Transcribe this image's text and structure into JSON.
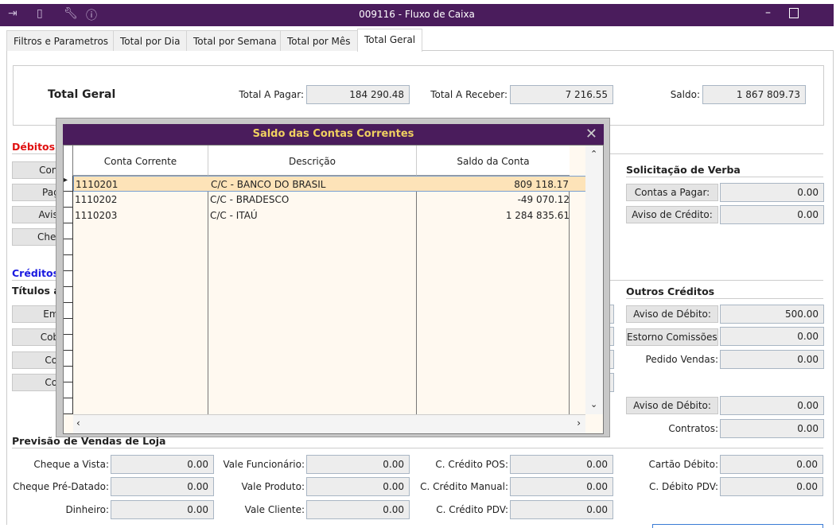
{
  "window": {
    "title": "009116 - Fluxo de Caixa",
    "icons": [
      "indent-icon",
      "traffic-light-icon",
      "wrench-icon",
      "info-icon"
    ]
  },
  "tabs": [
    {
      "label": "Filtros e Parametros"
    },
    {
      "label": "Total por Dia"
    },
    {
      "label": "Total por Semana"
    },
    {
      "label": "Total por Mês"
    },
    {
      "label": "Total Geral",
      "active": true
    }
  ],
  "summary": {
    "title": "Total Geral",
    "pagar_label": "Total A Pagar:",
    "pagar": "184 290.48",
    "receber_label": "Total A Receber:",
    "receber": "7 216.55",
    "saldo_label": "Saldo:",
    "saldo": "1 867 809.73"
  },
  "debitos": {
    "title": "Débitos",
    "buttons": [
      "Contas",
      "Pagar",
      "Aviso d",
      "Cheque"
    ]
  },
  "creditos": {
    "title": "Créditos",
    "subtitle": "Títulos a",
    "buttons": [
      "Em C",
      "Cob. S",
      "Cob.",
      "Cob."
    ]
  },
  "solicitacao": {
    "title": "Solicitação de Verba",
    "rows": [
      {
        "label": "Contas a Pagar:",
        "value": "0.00"
      },
      {
        "label": "Aviso de Crédito:",
        "value": "0.00"
      }
    ]
  },
  "outros": {
    "title": "Outros Créditos",
    "rows": [
      {
        "label": "Aviso de Débito:",
        "value": "500.00"
      },
      {
        "label": "Estorno Comissões:",
        "value": "0.00"
      },
      {
        "label": "Pedido Vendas:",
        "value": "0.00"
      },
      {
        "label": "Aviso de Débito:",
        "value": "0.00"
      },
      {
        "label": "Contratos:",
        "value": "0.00"
      }
    ]
  },
  "previsao": {
    "title": "Previsão de Vendas de Loja",
    "fields": [
      {
        "label": "Cheque a Vista:",
        "value": "0.00"
      },
      {
        "label": "Vale Funcionário:",
        "value": "0.00"
      },
      {
        "label": "C. Crédito POS:",
        "value": "0.00"
      },
      {
        "label": "Cartão Débito:",
        "value": "0.00"
      },
      {
        "label": "Cheque Pré-Datado:",
        "value": "0.00"
      },
      {
        "label": "Vale Produto:",
        "value": "0.00"
      },
      {
        "label": "C. Crédito Manual:",
        "value": "0.00"
      },
      {
        "label": "C. Débito PDV:",
        "value": "0.00"
      },
      {
        "label": "Dinheiro:",
        "value": "0.00"
      },
      {
        "label": "Vale Cliente:",
        "value": "0.00"
      },
      {
        "label": "C. Crédito PDV:",
        "value": "0.00"
      }
    ]
  },
  "dialog": {
    "title": "Saldo das Contas Correntes",
    "columns": [
      "Conta Corrente",
      "Descrição",
      "Saldo da Conta"
    ],
    "rows": [
      {
        "conta": "1110201",
        "descricao": "C/C - BANCO DO BRASIL",
        "saldo": "809 118.17"
      },
      {
        "conta": "1110202",
        "descricao": "C/C - BRADESCO",
        "saldo": "-49 070.12"
      },
      {
        "conta": "1110203",
        "descricao": "C/C - ITAÚ",
        "saldo": "1 284 835.61"
      }
    ]
  }
}
